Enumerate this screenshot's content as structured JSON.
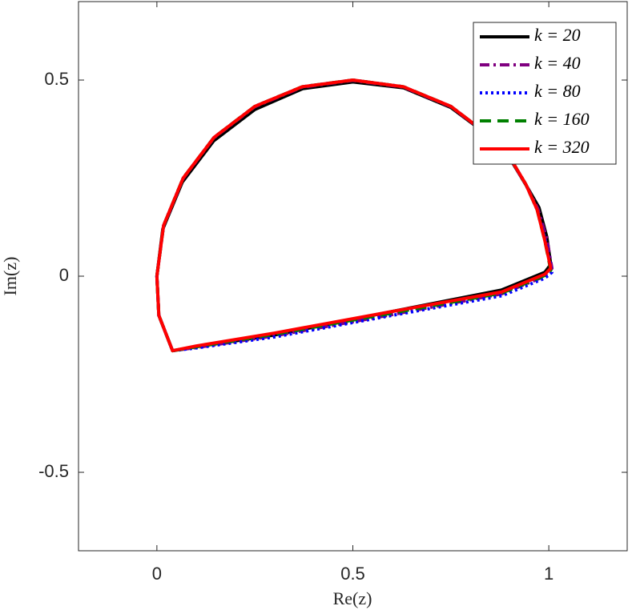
{
  "chart_data": {
    "type": "line",
    "xlabel": "Re(z)",
    "ylabel": "Im(z)",
    "xlim": [
      -0.2,
      1.2
    ],
    "ylim": [
      -0.7,
      0.7
    ],
    "xticks": [
      0,
      0.5,
      1
    ],
    "yticks": [
      -0.5,
      0,
      0.5
    ],
    "legend": "upper right",
    "grid": false,
    "series": [
      {
        "name": "k = 20",
        "color": "#000000",
        "style": "solid",
        "x": [
          0,
          0.015,
          0.065,
          0.145,
          0.25,
          0.372,
          0.5,
          0.63,
          0.75,
          0.855,
          0.91,
          0.942,
          0.975,
          0.995,
          1.005,
          0.99,
          0.88,
          0.6,
          0.3,
          0.1,
          0.04,
          0.005,
          0
        ],
        "values": [
          0,
          0.12,
          0.24,
          0.345,
          0.425,
          0.478,
          0.495,
          0.48,
          0.43,
          0.352,
          0.285,
          0.232,
          0.175,
          0.1,
          0.03,
          0.01,
          -0.035,
          -0.09,
          -0.15,
          -0.18,
          -0.19,
          -0.1,
          0
        ]
      },
      {
        "name": "k = 40",
        "color": "#800080",
        "style": "dashdot",
        "x": [
          0,
          0.017,
          0.067,
          0.146,
          0.25,
          0.371,
          0.5,
          0.629,
          0.75,
          0.854,
          0.91,
          0.941,
          0.972,
          0.995,
          1.008,
          0.99,
          0.88,
          0.6,
          0.3,
          0.1,
          0.04,
          0.005,
          0
        ],
        "values": [
          0,
          0.128,
          0.249,
          0.353,
          0.432,
          0.482,
          0.499,
          0.482,
          0.432,
          0.353,
          0.286,
          0.234,
          0.172,
          0.095,
          0.02,
          0.0,
          -0.045,
          -0.098,
          -0.152,
          -0.182,
          -0.19,
          -0.1,
          0
        ]
      },
      {
        "name": "k = 80",
        "color": "#0000ff",
        "style": "dotted",
        "x": [
          0,
          0.017,
          0.067,
          0.146,
          0.25,
          0.371,
          0.5,
          0.629,
          0.75,
          0.854,
          0.91,
          0.941,
          0.97,
          0.992,
          1.008,
          0.99,
          0.88,
          0.6,
          0.3,
          0.1,
          0.04,
          0.005,
          0
        ],
        "values": [
          0,
          0.129,
          0.25,
          0.354,
          0.433,
          0.483,
          0.5,
          0.483,
          0.433,
          0.354,
          0.287,
          0.235,
          0.17,
          0.09,
          0.01,
          -0.005,
          -0.05,
          -0.1,
          -0.155,
          -0.183,
          -0.19,
          -0.1,
          0
        ]
      },
      {
        "name": "k = 160",
        "color": "#008000",
        "style": "dashed",
        "x": [
          0,
          0.017,
          0.067,
          0.146,
          0.25,
          0.371,
          0.5,
          0.629,
          0.75,
          0.854,
          0.91,
          0.941,
          0.97,
          0.99,
          1.005,
          0.99,
          0.88,
          0.6,
          0.3,
          0.1,
          0.04,
          0.005,
          0
        ],
        "values": [
          0,
          0.129,
          0.25,
          0.354,
          0.433,
          0.483,
          0.5,
          0.483,
          0.433,
          0.354,
          0.287,
          0.235,
          0.17,
          0.09,
          0.015,
          0.002,
          -0.043,
          -0.094,
          -0.148,
          -0.18,
          -0.19,
          -0.1,
          0
        ]
      },
      {
        "name": "k = 320",
        "color": "#ff0000",
        "style": "solid",
        "x": [
          0,
          0.017,
          0.067,
          0.146,
          0.25,
          0.371,
          0.5,
          0.629,
          0.75,
          0.854,
          0.91,
          0.941,
          0.97,
          0.99,
          1.005,
          0.99,
          0.88,
          0.6,
          0.3,
          0.1,
          0.04,
          0.005,
          0
        ],
        "values": [
          0,
          0.129,
          0.25,
          0.354,
          0.433,
          0.483,
          0.5,
          0.483,
          0.433,
          0.354,
          0.287,
          0.235,
          0.17,
          0.09,
          0.02,
          0.005,
          -0.04,
          -0.09,
          -0.145,
          -0.178,
          -0.19,
          -0.1,
          0
        ]
      }
    ]
  }
}
